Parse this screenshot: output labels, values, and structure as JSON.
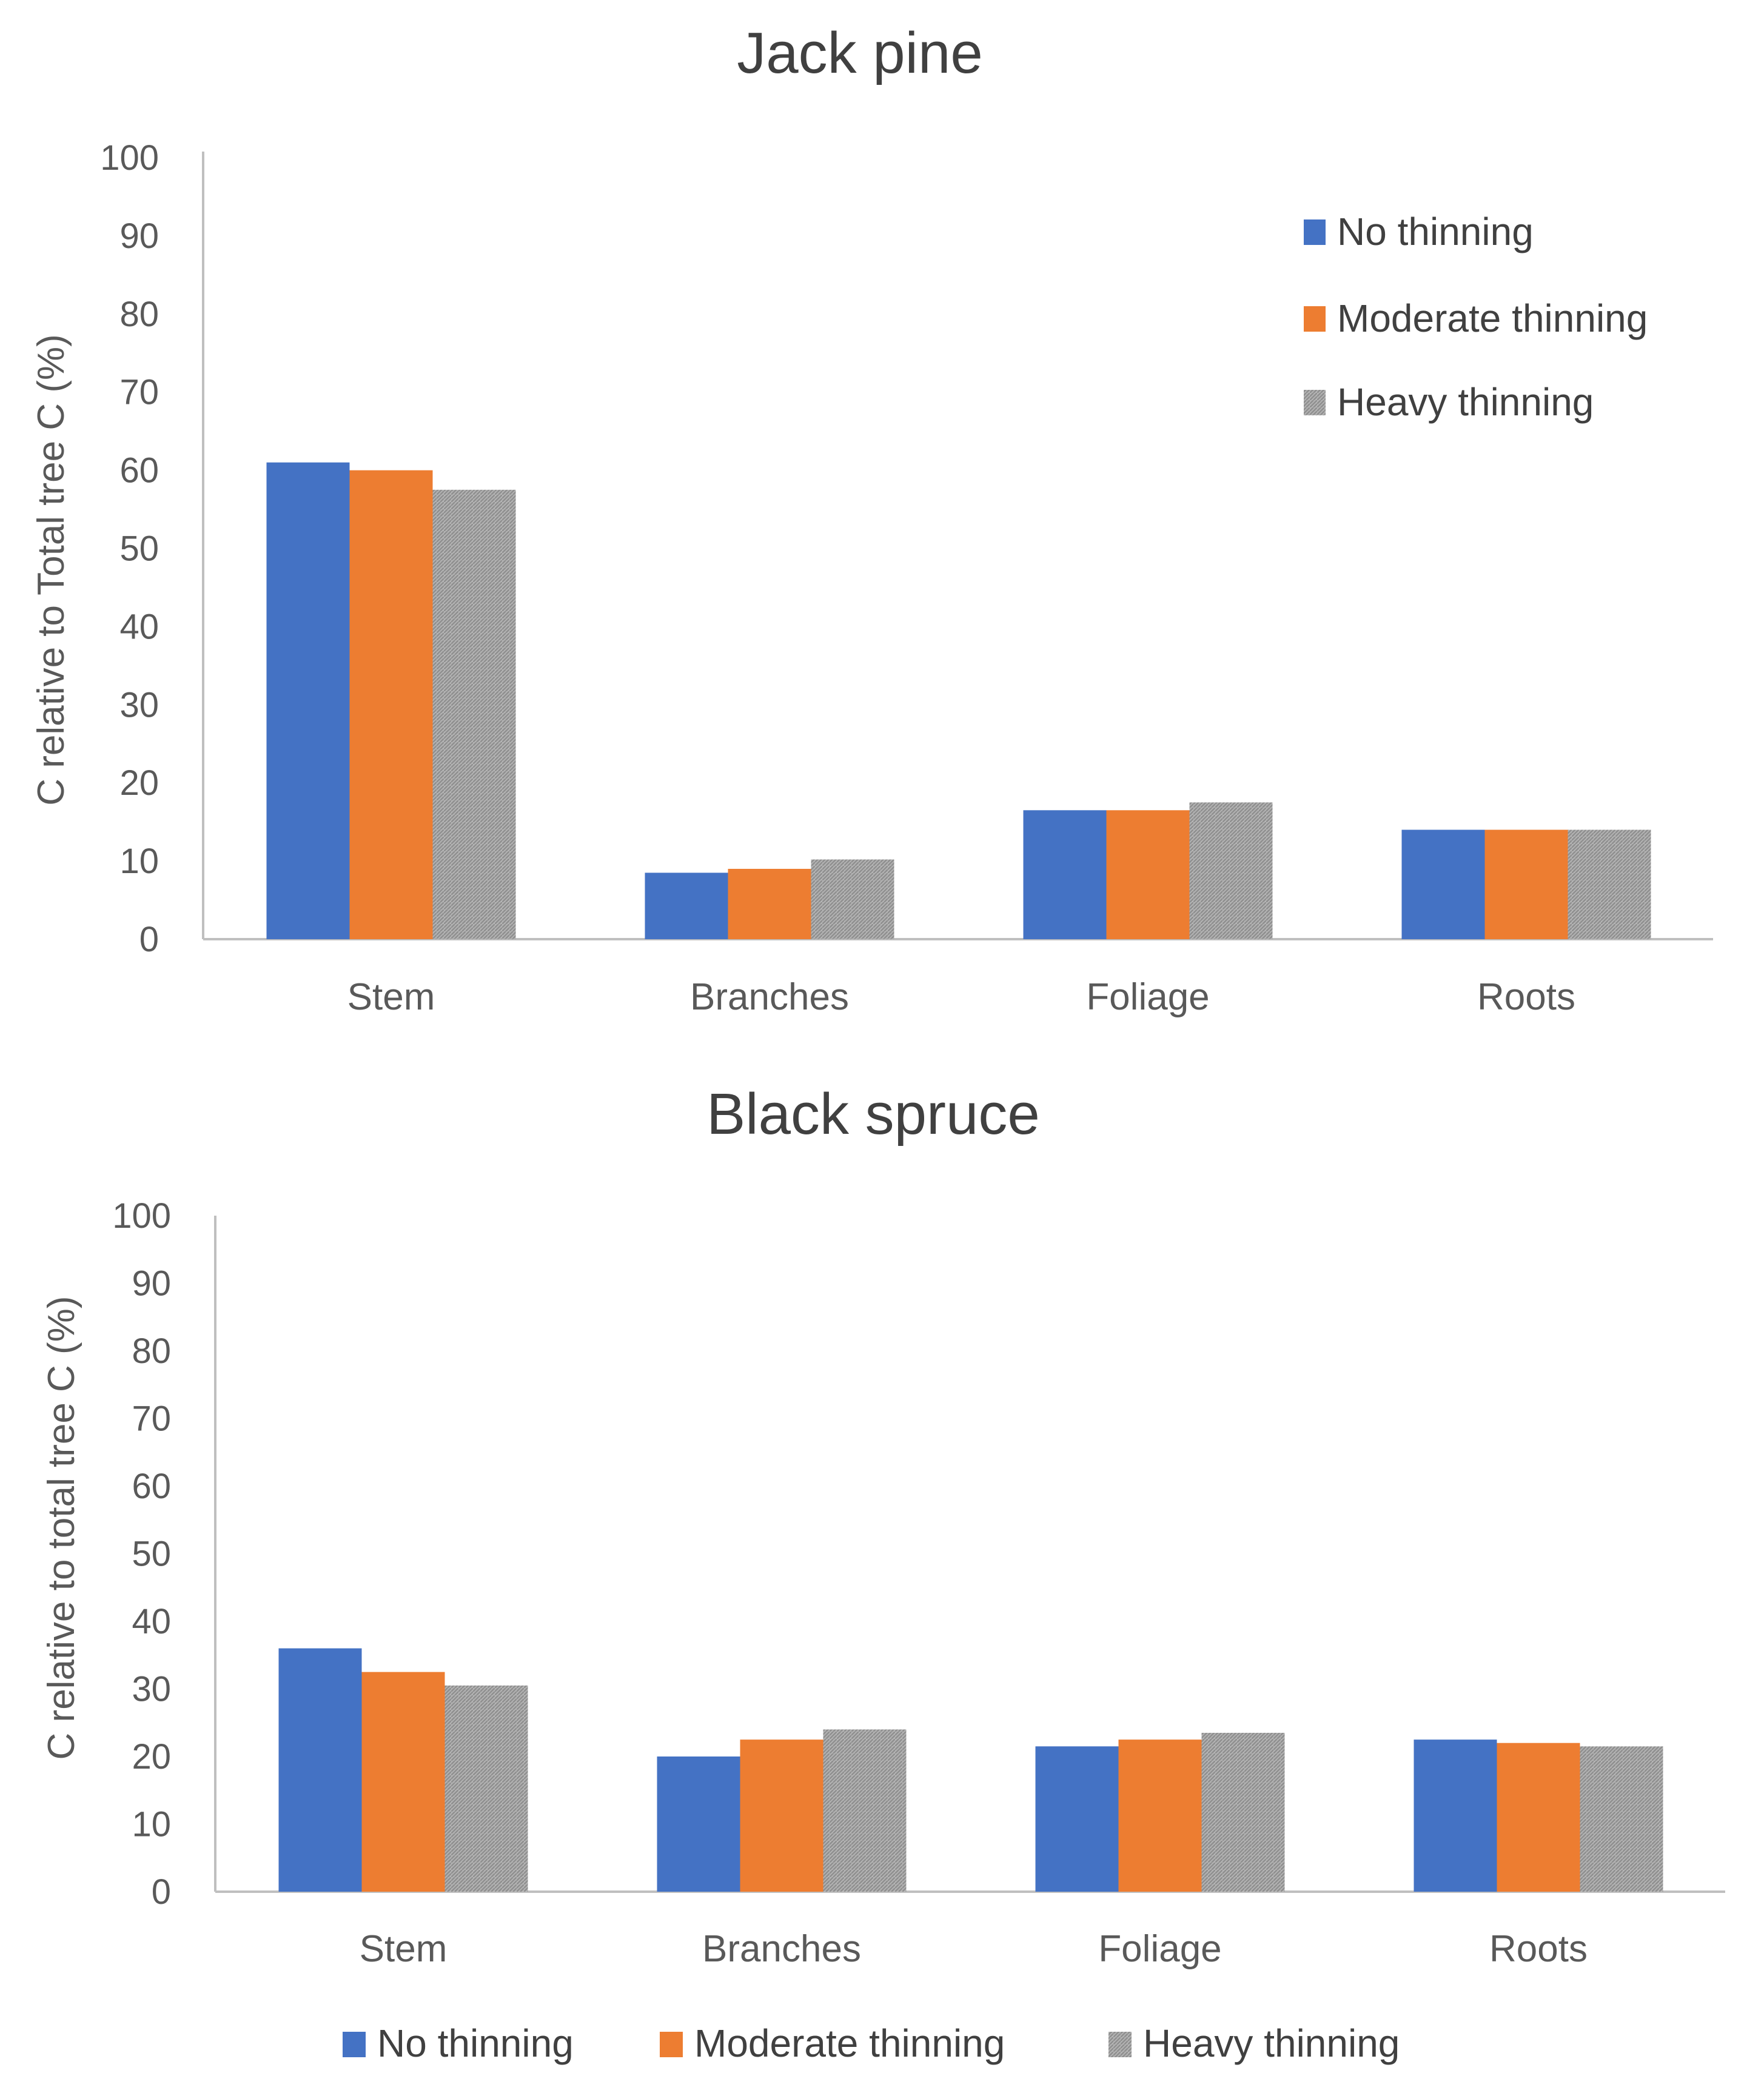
{
  "colors": {
    "no_thinning": "#4472c4",
    "moderate_thinning": "#ed7d31",
    "heavy_thinning": "#a5a5a5",
    "axis": "#bfbfbf",
    "text": "#595959"
  },
  "chart_data": [
    {
      "type": "bar",
      "title": "Jack pine",
      "xlabel": "",
      "ylabel": "C relative to Total tree C (%)",
      "ylim": [
        0,
        100
      ],
      "yticks": [
        "0",
        "10",
        "20",
        "30",
        "40",
        "50",
        "60",
        "70",
        "80",
        "90",
        "100"
      ],
      "categories": [
        "Stem",
        "Branches",
        "Foliage",
        "Roots"
      ],
      "legend_position": "top-right",
      "series": [
        {
          "name": "No thinning",
          "values": [
            61,
            8.5,
            16.5,
            14
          ]
        },
        {
          "name": "Moderate thinning",
          "values": [
            60,
            9,
            16.5,
            14
          ]
        },
        {
          "name": "Heavy thinning",
          "values": [
            57.5,
            10.2,
            17.5,
            14
          ]
        }
      ]
    },
    {
      "type": "bar",
      "title": "Black spruce",
      "xlabel": "",
      "ylabel": "C relative to total tree C (%)",
      "ylim": [
        0,
        100
      ],
      "yticks": [
        "0",
        "10",
        "20",
        "30",
        "40",
        "50",
        "60",
        "70",
        "80",
        "90",
        "100"
      ],
      "categories": [
        "Stem",
        "Branches",
        "Foliage",
        "Roots"
      ],
      "legend_position": "bottom",
      "series": [
        {
          "name": "No thinning",
          "values": [
            36,
            20,
            21.5,
            22.5
          ]
        },
        {
          "name": "Moderate thinning",
          "values": [
            32.5,
            22.5,
            22.5,
            22
          ]
        },
        {
          "name": "Heavy thinning",
          "values": [
            30.5,
            24,
            23.5,
            21.5
          ]
        }
      ]
    }
  ]
}
